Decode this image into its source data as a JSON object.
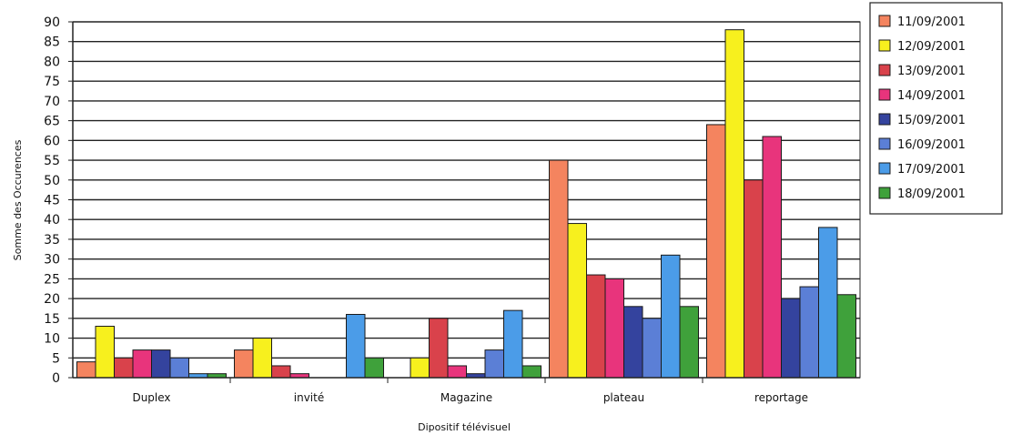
{
  "chart_data": {
    "type": "bar",
    "title": "",
    "xlabel": "Dipositif télévisuel",
    "ylabel": "Somme des Occurences",
    "ylim": [
      0,
      90
    ],
    "ytick_step": 5,
    "grid": true,
    "legend_position": "top-right",
    "categories": [
      "Duplex",
      "invité",
      "Magazine",
      "plateau",
      "reportage"
    ],
    "series": [
      {
        "name": "11/09/2001",
        "color": "#f4845f",
        "values": [
          4,
          7,
          0,
          55,
          64
        ]
      },
      {
        "name": "12/09/2001",
        "color": "#f7f01e",
        "values": [
          13,
          10,
          5,
          39,
          88
        ]
      },
      {
        "name": "13/09/2001",
        "color": "#d9424b",
        "values": [
          5,
          3,
          15,
          26,
          50
        ]
      },
      {
        "name": "14/09/2001",
        "color": "#e8347c",
        "values": [
          7,
          1,
          3,
          25,
          61
        ]
      },
      {
        "name": "15/09/2001",
        "color": "#34439e",
        "values": [
          7,
          0,
          1,
          18,
          20
        ]
      },
      {
        "name": "16/09/2001",
        "color": "#5b7fd6",
        "values": [
          5,
          0,
          7,
          15,
          23
        ]
      },
      {
        "name": "17/09/2001",
        "color": "#4b9ce8",
        "values": [
          1,
          16,
          17,
          31,
          38
        ]
      },
      {
        "name": "18/09/2001",
        "color": "#3fa13b",
        "values": [
          1,
          5,
          3,
          18,
          21
        ]
      }
    ]
  }
}
